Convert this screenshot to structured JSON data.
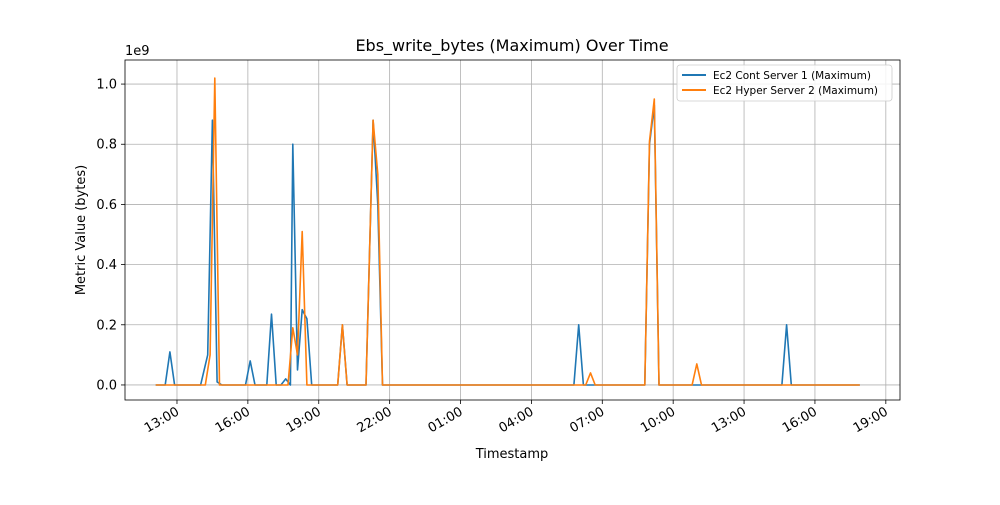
{
  "chart_data": {
    "type": "line",
    "title": "Ebs_write_bytes (Maximum) Over Time",
    "xlabel": "Timestamp",
    "ylabel": "Metric Value (bytes)",
    "y_offset_label": "1e9",
    "y_scale": 1000000000,
    "ylim": [
      -0.05,
      1.08
    ],
    "xlim_hours": [
      10.8,
      43.6
    ],
    "y_ticks": [
      {
        "value": 0.0,
        "label": "0.0"
      },
      {
        "value": 0.2,
        "label": "0.2"
      },
      {
        "value": 0.4,
        "label": "0.4"
      },
      {
        "value": 0.6,
        "label": "0.6"
      },
      {
        "value": 0.8,
        "label": "0.8"
      },
      {
        "value": 1.0,
        "label": "1.0"
      }
    ],
    "x_ticks": [
      {
        "value": 13,
        "label": "13:00"
      },
      {
        "value": 16,
        "label": "16:00"
      },
      {
        "value": 19,
        "label": "19:00"
      },
      {
        "value": 22,
        "label": "22:00"
      },
      {
        "value": 25,
        "label": "01:00"
      },
      {
        "value": 28,
        "label": "04:00"
      },
      {
        "value": 31,
        "label": "07:00"
      },
      {
        "value": 34,
        "label": "10:00"
      },
      {
        "value": 37,
        "label": "13:00"
      },
      {
        "value": 40,
        "label": "16:00"
      },
      {
        "value": 43,
        "label": "19:00"
      }
    ],
    "grid": true,
    "legend_position": "top-right",
    "series": [
      {
        "name": "Ec2 Cont Server 1 (Maximum)",
        "color": "#1f77b4",
        "points": [
          [
            12.1,
            0.0
          ],
          [
            12.5,
            0.0
          ],
          [
            12.7,
            0.11
          ],
          [
            12.9,
            0.0
          ],
          [
            14.0,
            0.0
          ],
          [
            14.3,
            0.1
          ],
          [
            14.5,
            0.88
          ],
          [
            14.7,
            0.01
          ],
          [
            14.9,
            0.0
          ],
          [
            15.9,
            0.0
          ],
          [
            16.1,
            0.08
          ],
          [
            16.3,
            0.0
          ],
          [
            16.8,
            0.0
          ],
          [
            17.0,
            0.235
          ],
          [
            17.2,
            0.0
          ],
          [
            17.4,
            0.0
          ],
          [
            17.6,
            0.02
          ],
          [
            17.8,
            0.0
          ],
          [
            17.9,
            0.8
          ],
          [
            18.1,
            0.05
          ],
          [
            18.3,
            0.25
          ],
          [
            18.5,
            0.22
          ],
          [
            18.7,
            0.0
          ],
          [
            19.8,
            0.0
          ],
          [
            20.0,
            0.2
          ],
          [
            20.2,
            0.0
          ],
          [
            21.0,
            0.0
          ],
          [
            21.3,
            0.88
          ],
          [
            21.5,
            0.6
          ],
          [
            21.7,
            0.0
          ],
          [
            29.8,
            0.0
          ],
          [
            30.0,
            0.2
          ],
          [
            30.2,
            0.0
          ],
          [
            32.8,
            0.0
          ],
          [
            33.0,
            0.8
          ],
          [
            33.2,
            0.93
          ],
          [
            33.4,
            0.0
          ],
          [
            38.6,
            0.0
          ],
          [
            38.8,
            0.2
          ],
          [
            39.0,
            0.0
          ],
          [
            41.9,
            0.0
          ]
        ]
      },
      {
        "name": "Ec2 Hyper Server 2 (Maximum)",
        "color": "#ff7f0e",
        "points": [
          [
            12.1,
            0.0
          ],
          [
            14.2,
            0.0
          ],
          [
            14.4,
            0.1
          ],
          [
            14.6,
            1.02
          ],
          [
            14.8,
            0.0
          ],
          [
            15.0,
            0.0
          ],
          [
            17.7,
            0.0
          ],
          [
            17.9,
            0.19
          ],
          [
            18.1,
            0.1
          ],
          [
            18.3,
            0.51
          ],
          [
            18.5,
            0.0
          ],
          [
            19.8,
            0.0
          ],
          [
            20.0,
            0.2
          ],
          [
            20.2,
            0.0
          ],
          [
            21.0,
            0.0
          ],
          [
            21.3,
            0.88
          ],
          [
            21.5,
            0.7
          ],
          [
            21.7,
            0.0
          ],
          [
            30.3,
            0.0
          ],
          [
            30.5,
            0.04
          ],
          [
            30.7,
            0.0
          ],
          [
            32.8,
            0.0
          ],
          [
            33.0,
            0.81
          ],
          [
            33.2,
            0.95
          ],
          [
            33.4,
            0.0
          ],
          [
            34.8,
            0.0
          ],
          [
            35.0,
            0.07
          ],
          [
            35.2,
            0.0
          ],
          [
            41.9,
            0.0
          ]
        ]
      }
    ]
  }
}
